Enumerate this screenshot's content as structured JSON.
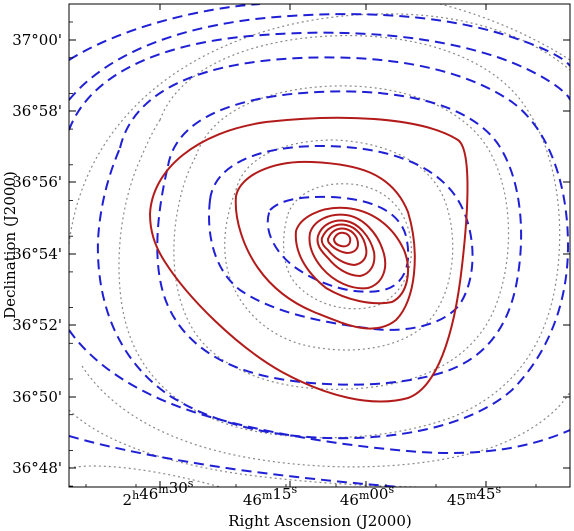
{
  "chart_data": {
    "type": "contour",
    "xlabel": "Right Ascension (J2000)",
    "ylabel": "Declination (J2000)",
    "x_ticks": [
      {
        "value": "2h46m30s",
        "parts": [
          [
            "2",
            "h"
          ],
          [
            "46",
            "m"
          ],
          [
            "30",
            "s"
          ]
        ]
      },
      {
        "value": "46m15s",
        "parts": [
          [
            "46",
            "m"
          ],
          [
            "15",
            "s"
          ]
        ]
      },
      {
        "value": "46m00s",
        "parts": [
          [
            "46",
            "m"
          ],
          [
            "00",
            "s"
          ]
        ]
      },
      {
        "value": "45m45s",
        "parts": [
          [
            "45",
            "m"
          ],
          [
            "45",
            "s"
          ]
        ]
      }
    ],
    "y_ticks": [
      "37°00'",
      "36°58'",
      "36°56'",
      "36°54'",
      "36°52'",
      "36°50'",
      "36°48'"
    ],
    "colors": {
      "red": "#b31b1b",
      "blue": "#1f1fd6",
      "gray": "#8a8a8a"
    },
    "red_contours": [
      {
        "style": "solid",
        "level_index": 1
      },
      {
        "style": "solid",
        "level_index": 2
      },
      {
        "style": "solid",
        "level_index": 3
      },
      {
        "style": "solid",
        "level_index": 4
      },
      {
        "style": "solid",
        "level_index": 5
      },
      {
        "style": "solid",
        "level_index": 6
      },
      {
        "style": "solid",
        "level_index": 7
      },
      {
        "style": "solid",
        "level_index": 8
      }
    ],
    "blue_contours": [
      {
        "style": "dashed",
        "level_index": 1
      },
      {
        "style": "dashed",
        "level_index": 2
      },
      {
        "style": "dashed",
        "level_index": 3
      },
      {
        "style": "dashed",
        "level_index": 4
      },
      {
        "style": "dashed",
        "level_index": 5
      },
      {
        "style": "dashed",
        "level_index": 6
      },
      {
        "style": "dashed",
        "level_index": 7
      },
      {
        "style": "dashed",
        "level_index": 8
      },
      {
        "style": "dashed",
        "level_index": 9
      }
    ],
    "gray_contours": [
      {
        "style": "dotted",
        "level_index": 1
      },
      {
        "style": "dotted",
        "level_index": 2
      },
      {
        "style": "dotted",
        "level_index": 3
      },
      {
        "style": "dotted",
        "level_index": 4
      },
      {
        "style": "dotted",
        "level_index": 5
      },
      {
        "style": "dotted",
        "level_index": 6
      },
      {
        "style": "dotted",
        "level_index": 7
      },
      {
        "style": "dotted",
        "level_index": 8
      },
      {
        "style": "dotted",
        "level_index": 9
      }
    ]
  }
}
